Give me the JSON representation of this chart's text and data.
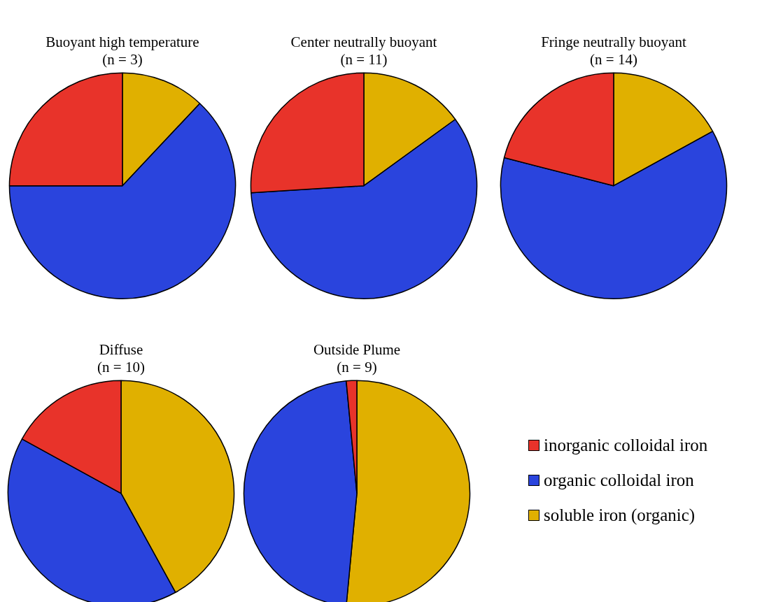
{
  "chart_data": [
    {
      "type": "pie",
      "title": "Buoyant high temperature",
      "subtitle": "(n = 3)",
      "categories": [
        null,
        null,
        null
      ],
      "values": [
        12,
        63,
        25
      ],
      "colors": [
        "#e0b000",
        "#2a44dd",
        "#e8332a"
      ]
    },
    {
      "type": "pie",
      "title": "Center neutrally buoyant",
      "subtitle": "(n = 11)",
      "categories": [
        null,
        null,
        null
      ],
      "values": [
        15,
        59,
        26
      ],
      "colors": [
        "#e0b000",
        "#2a44dd",
        "#e8332a"
      ]
    },
    {
      "type": "pie",
      "title": "Fringe neutrally buoyant",
      "subtitle": "(n = 14)",
      "categories": [
        null,
        null,
        null
      ],
      "values": [
        17,
        62,
        21
      ],
      "colors": [
        "#e0b000",
        "#2a44dd",
        "#e8332a"
      ]
    },
    {
      "type": "pie",
      "title": "Diffuse",
      "subtitle": "(n = 10)",
      "categories": [
        null,
        null,
        null
      ],
      "values": [
        42,
        41,
        17
      ],
      "colors": [
        "#e0b000",
        "#2a44dd",
        "#e8332a"
      ]
    },
    {
      "type": "pie",
      "title": "Outside Plume",
      "subtitle": "(n = 9)",
      "categories": [
        "soluble iron (organic)",
        "organic colloidal iron",
        "inorganic colloidal iron"
      ],
      "values": [
        51.5,
        47,
        1.5
      ],
      "colors": [
        "#e0b000",
        "#2a44dd",
        "#e8332a"
      ],
      "legend": "right"
    }
  ]
}
